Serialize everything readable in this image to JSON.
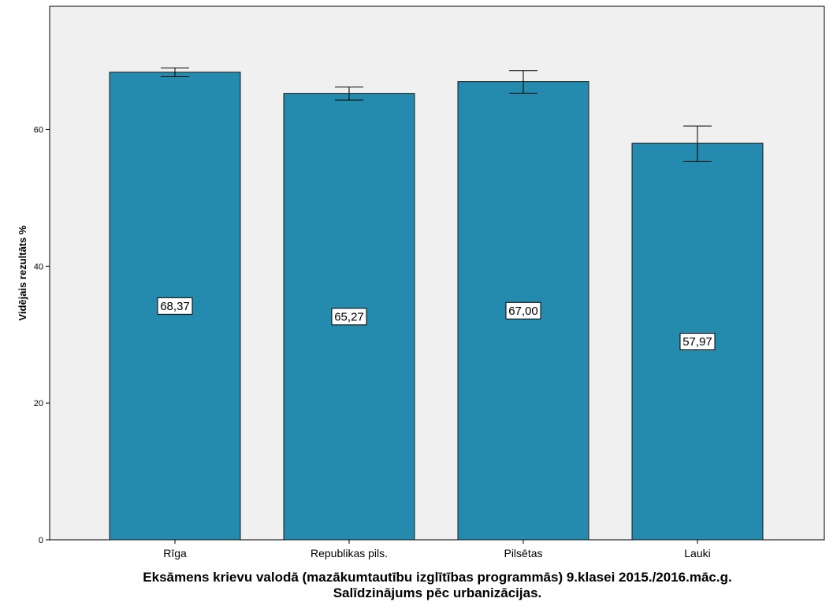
{
  "chart_data": {
    "type": "bar",
    "title": "Eksāmens krievu valodā (mazākumtautību izglītības programmās) 9.klasei 2015./2016.māc.g.",
    "subtitle": "Salīdzinājums pēc urbanizācijas.",
    "xlabel": "",
    "ylabel": "Vidējais rezultāts %",
    "categories": [
      "Rīga",
      "Republikas pils.",
      "Pilsētas",
      "Lauki"
    ],
    "values": [
      68.37,
      65.27,
      67.0,
      57.97
    ],
    "value_labels": [
      "68,37",
      "65,27",
      "67,00",
      "57,97"
    ],
    "error_low": [
      67.7,
      64.3,
      65.3,
      55.3
    ],
    "error_high": [
      69.0,
      66.2,
      68.6,
      60.5
    ],
    "ylim": [
      0,
      78
    ],
    "yticks": [
      0,
      20,
      40,
      60
    ],
    "ytick_labels": [
      "0",
      "20",
      "40",
      "60"
    ],
    "grid": false,
    "legend": "none",
    "colors": {
      "bar": "#248BAE",
      "bar_stroke": "#1a1a1a",
      "plot_background": "#F0F0F0",
      "label_box": "#ffffff"
    }
  }
}
